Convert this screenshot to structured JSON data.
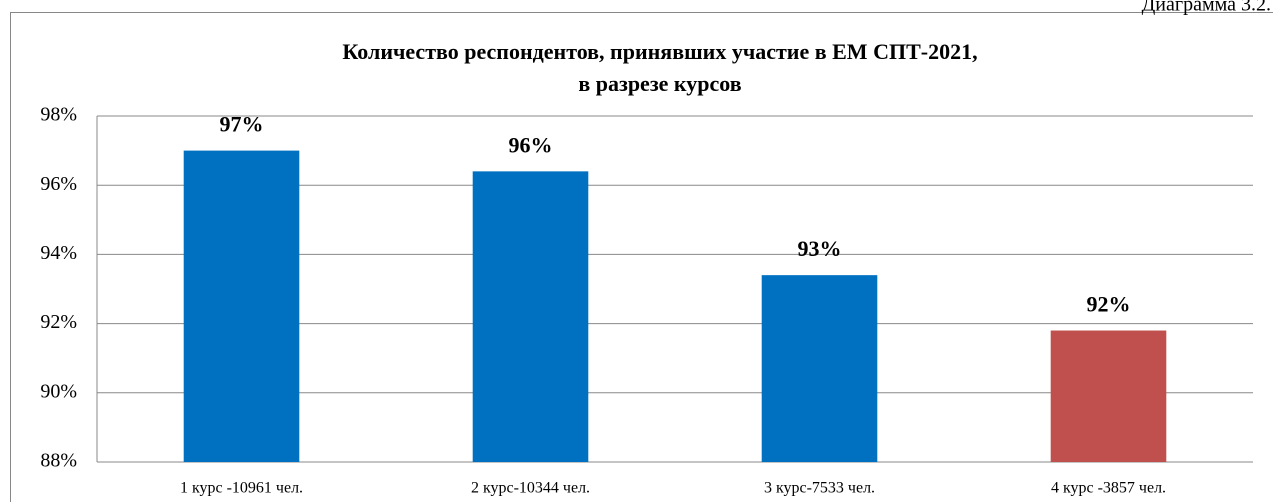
{
  "caption": "Диаграмма 3.2.",
  "chart_data": {
    "type": "bar",
    "title": [
      "Количество респондентов, принявших участие в ЕМ СПТ-2021,",
      "в разрезе курсов"
    ],
    "categories": [
      "1 курс -10961 чел.",
      "2 курс-10344 чел.",
      "3 курс-7533 чел.",
      "4 курс -3857 чел."
    ],
    "values": [
      97.0,
      96.4,
      93.4,
      91.8
    ],
    "value_labels": [
      "97%",
      "96%",
      "93%",
      "92%"
    ],
    "colors": [
      "#0070c0",
      "#0070c0",
      "#0070c0",
      "#c0504d"
    ],
    "ylim": [
      88,
      98
    ],
    "yticks": [
      {
        "value": 88,
        "label": "88%"
      },
      {
        "value": 90,
        "label": "90%"
      },
      {
        "value": 92,
        "label": "92%"
      },
      {
        "value": 94,
        "label": "94%"
      },
      {
        "value": 96,
        "label": "96%"
      },
      {
        "value": 98,
        "label": "98%"
      }
    ],
    "grid": true
  }
}
